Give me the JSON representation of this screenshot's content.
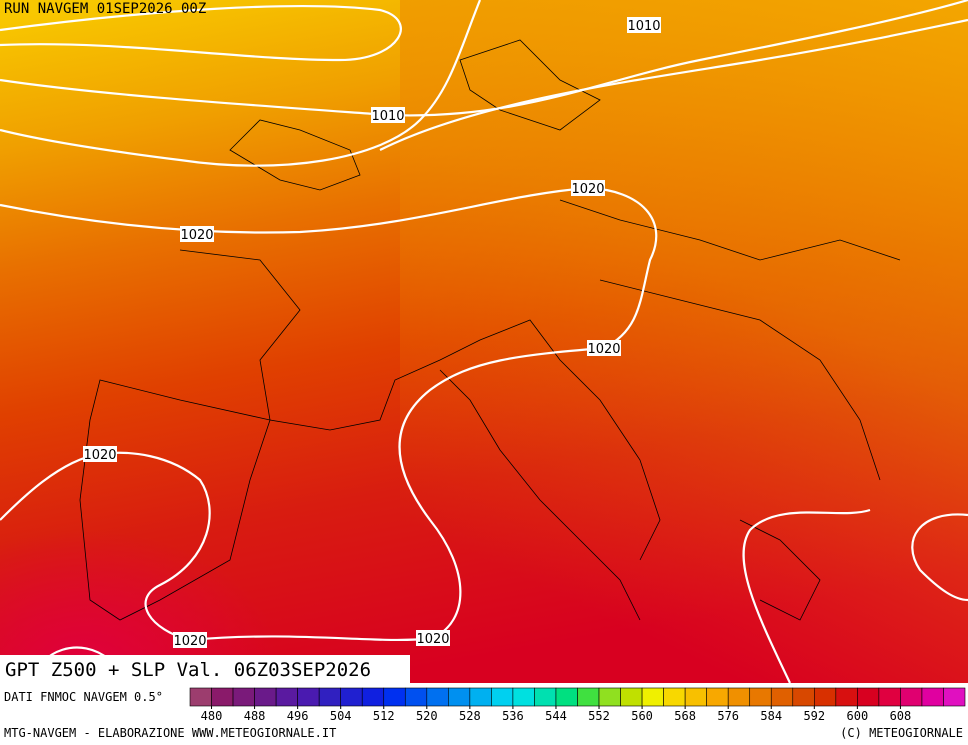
{
  "header": {
    "run": "RUN NAVGEM 01SEP2026 00Z"
  },
  "isobar_labels": [
    "1010",
    "1010",
    "1020",
    "1020",
    "1020",
    "1020",
    "1020",
    "1020"
  ],
  "map_title": "GPT Z500 + SLP Val. 06Z03SEP2026",
  "colorbar": {
    "label": "DATI FNMOC NAVGEM 0.5°",
    "range": [
      476,
      620
    ],
    "colors": [
      "#9c3d6e",
      "#8a1a6a",
      "#7a1a7a",
      "#6a1a8a",
      "#5a1aa0",
      "#4a1ab0",
      "#3020c0",
      "#2020d0",
      "#1020e0",
      "#0030f0",
      "#0050f0",
      "#0070f0",
      "#0090f0",
      "#00b0f0",
      "#00d0f0",
      "#00e0e0",
      "#00e0b0",
      "#00e080",
      "#40e040",
      "#90e020",
      "#c0e000",
      "#f0f000",
      "#f8d800",
      "#f8c000",
      "#f8a800",
      "#f09000",
      "#e87800",
      "#e06000",
      "#d84800",
      "#d83000",
      "#d81010",
      "#d80020",
      "#e00040",
      "#e00070",
      "#e000a0",
      "#e010c0"
    ],
    "ticks": [
      480,
      488,
      496,
      504,
      512,
      520,
      528,
      536,
      544,
      552,
      560,
      568,
      576,
      584,
      592,
      600,
      608
    ]
  },
  "footer": {
    "left": "MTG-NAVGEM - ELABORAZIONE WWW.METEOGIORNALE.IT",
    "right": "(C) METEOGIORNALE"
  }
}
